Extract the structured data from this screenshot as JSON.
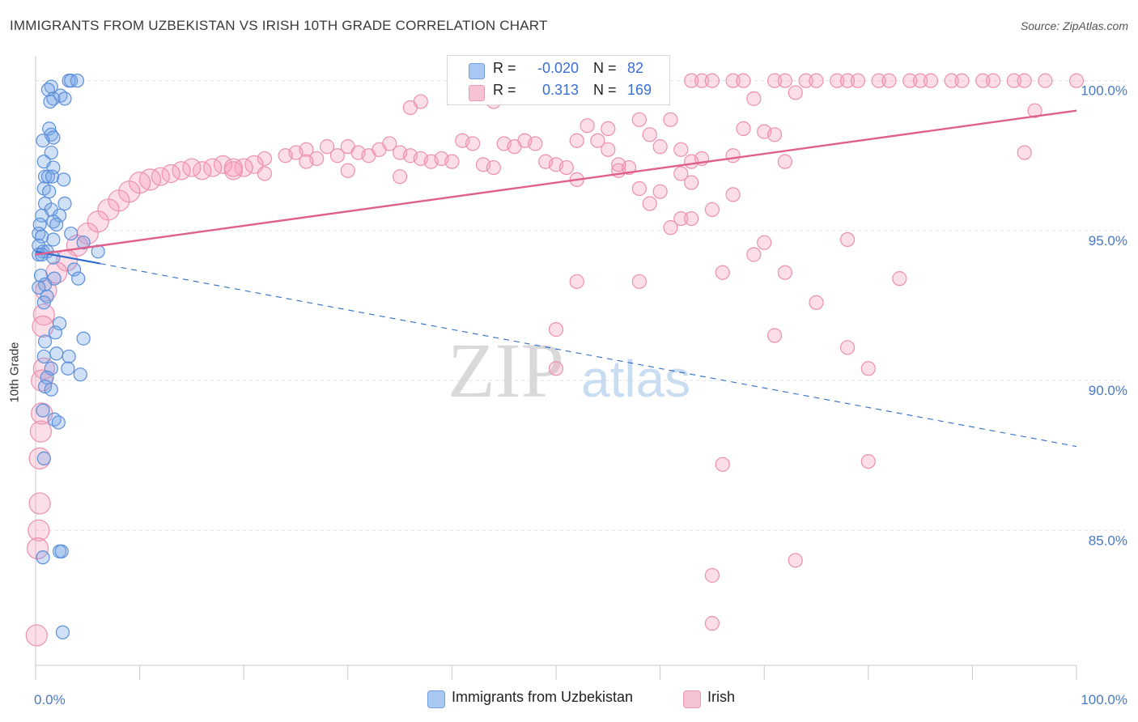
{
  "title": "IMMIGRANTS FROM UZBEKISTAN VS IRISH 10TH GRADE CORRELATION CHART",
  "source": "Source: ZipAtlas.com",
  "watermark": {
    "zip": "ZIP",
    "atlas": "atlas"
  },
  "legend": {
    "r_label": "R =",
    "n_label": "N =",
    "rows": [
      {
        "name": "Immigrants from Uzbekistan",
        "r": "-0.020",
        "n": "82",
        "color": "#a9c8f2"
      },
      {
        "name": "Irish",
        "r": "0.313",
        "n": "169",
        "color": "#f5b5c8"
      }
    ]
  },
  "chart_data": {
    "type": "scatter",
    "title": "IMMIGRANTS FROM UZBEKISTAN VS IRISH 10TH GRADE CORRELATION CHART",
    "xlabel": "",
    "ylabel": "10th Grade",
    "xlim": [
      0,
      100
    ],
    "ylim": [
      80.5,
      100.8
    ],
    "x_tick_labels": [
      {
        "value": 0,
        "label": "0.0%"
      },
      {
        "value": 100,
        "label": "100.0%"
      }
    ],
    "y_ticks": [
      {
        "value": 85,
        "label": "85.0%"
      },
      {
        "value": 90,
        "label": "90.0%"
      },
      {
        "value": 95,
        "label": "95.0%"
      },
      {
        "value": 100,
        "label": "100.0%"
      }
    ],
    "colors": {
      "uzbekistan_fill": "rgba(120,165,230,0.35)",
      "uzbekistan_stroke": "#5b8fdb",
      "irish_fill": "rgba(245,160,190,0.35)",
      "irish_stroke": "#ec8fb0",
      "uzbekistan_line": "#2f6cc9",
      "irish_line": "#e0608c"
    },
    "series": [
      {
        "name": "Immigrants from Uzbekistan",
        "r": -0.02,
        "n": 82,
        "trend": {
          "x0": 0,
          "y0": 94.3,
          "x1": 6.2,
          "y1": 93.9,
          "dash_x1": 100,
          "dash_y1": 87.8
        },
        "points": [
          [
            3.2,
            100
          ],
          [
            3.4,
            100
          ],
          [
            4.0,
            100
          ],
          [
            1.5,
            99.8
          ],
          [
            1.2,
            99.7
          ],
          [
            2.4,
            99.5
          ],
          [
            1.7,
            99.4
          ],
          [
            1.4,
            99.3
          ],
          [
            2.8,
            99.4
          ],
          [
            1.3,
            98.4
          ],
          [
            1.5,
            98.2
          ],
          [
            1.7,
            98.1
          ],
          [
            0.7,
            98.0
          ],
          [
            1.5,
            97.6
          ],
          [
            0.8,
            97.3
          ],
          [
            1.7,
            97.1
          ],
          [
            0.9,
            96.8
          ],
          [
            1.2,
            96.8
          ],
          [
            1.6,
            96.8
          ],
          [
            2.7,
            96.7
          ],
          [
            0.8,
            96.4
          ],
          [
            1.3,
            96.3
          ],
          [
            0.9,
            95.9
          ],
          [
            2.8,
            95.9
          ],
          [
            1.5,
            95.7
          ],
          [
            0.6,
            95.5
          ],
          [
            2.3,
            95.5
          ],
          [
            1.7,
            95.3
          ],
          [
            2.0,
            95.2
          ],
          [
            0.4,
            95.2
          ],
          [
            0.3,
            94.9
          ],
          [
            0.6,
            94.8
          ],
          [
            3.4,
            94.9
          ],
          [
            1.7,
            94.7
          ],
          [
            4.6,
            94.6
          ],
          [
            0.3,
            94.5
          ],
          [
            0.7,
            94.3
          ],
          [
            1.1,
            94.3
          ],
          [
            0.3,
            94.2
          ],
          [
            0.6,
            94.2
          ],
          [
            6.0,
            94.3
          ],
          [
            1.7,
            94.1
          ],
          [
            3.7,
            93.7
          ],
          [
            0.5,
            93.5
          ],
          [
            1.8,
            93.4
          ],
          [
            4.1,
            93.4
          ],
          [
            0.9,
            93.2
          ],
          [
            0.3,
            93.1
          ],
          [
            1.1,
            92.8
          ],
          [
            0.8,
            92.6
          ],
          [
            2.3,
            91.9
          ],
          [
            1.9,
            91.6
          ],
          [
            4.6,
            91.4
          ],
          [
            0.9,
            91.3
          ],
          [
            2.0,
            90.9
          ],
          [
            0.8,
            90.8
          ],
          [
            3.2,
            90.8
          ],
          [
            1.5,
            90.4
          ],
          [
            3.1,
            90.4
          ],
          [
            1.1,
            90.1
          ],
          [
            4.3,
            90.2
          ],
          [
            0.9,
            89.8
          ],
          [
            1.5,
            89.7
          ],
          [
            0.7,
            89.0
          ],
          [
            1.8,
            88.7
          ],
          [
            2.2,
            88.6
          ],
          [
            0.8,
            87.4
          ],
          [
            2.3,
            84.3
          ],
          [
            2.5,
            84.3
          ],
          [
            0.7,
            84.1
          ],
          [
            2.6,
            81.6
          ]
        ]
      },
      {
        "name": "Irish",
        "r": 0.313,
        "n": 169,
        "trend": {
          "x0": 0,
          "y0": 94.2,
          "x1": 100,
          "y1": 99.0
        },
        "points": [
          [
            63,
            100
          ],
          [
            64,
            100
          ],
          [
            65,
            100
          ],
          [
            67,
            100
          ],
          [
            68,
            100
          ],
          [
            71,
            100
          ],
          [
            72,
            100
          ],
          [
            74,
            100
          ],
          [
            75,
            100
          ],
          [
            77,
            100
          ],
          [
            78,
            100
          ],
          [
            79,
            100
          ],
          [
            81,
            100
          ],
          [
            82,
            100
          ],
          [
            84,
            100
          ],
          [
            85,
            100
          ],
          [
            86,
            100
          ],
          [
            88,
            100
          ],
          [
            89,
            100
          ],
          [
            91,
            100
          ],
          [
            92,
            100
          ],
          [
            94,
            100
          ],
          [
            95,
            100
          ],
          [
            97,
            100
          ],
          [
            100,
            100
          ],
          [
            73,
            99.6
          ],
          [
            69,
            99.4
          ],
          [
            44,
            99.3
          ],
          [
            37,
            99.3
          ],
          [
            36,
            99.1
          ],
          [
            96,
            99.0
          ],
          [
            58,
            98.7
          ],
          [
            61,
            98.7
          ],
          [
            53,
            98.5
          ],
          [
            55,
            98.4
          ],
          [
            68,
            98.4
          ],
          [
            70,
            98.3
          ],
          [
            71,
            98.2
          ],
          [
            59,
            98.2
          ],
          [
            54,
            98.0
          ],
          [
            47,
            98.0
          ],
          [
            48,
            97.9
          ],
          [
            45,
            97.9
          ],
          [
            34,
            97.9
          ],
          [
            30,
            97.8
          ],
          [
            41,
            98.0
          ],
          [
            42,
            97.9
          ],
          [
            46,
            97.8
          ],
          [
            52,
            98.0
          ],
          [
            60,
            97.8
          ],
          [
            55,
            97.7
          ],
          [
            62,
            97.7
          ],
          [
            67,
            97.5
          ],
          [
            64,
            97.4
          ],
          [
            63,
            97.3
          ],
          [
            28,
            97.8
          ],
          [
            26,
            97.7
          ],
          [
            25,
            97.6
          ],
          [
            24,
            97.5
          ],
          [
            22,
            97.4
          ],
          [
            27,
            97.4
          ],
          [
            29,
            97.5
          ],
          [
            31,
            97.6
          ],
          [
            32,
            97.5
          ],
          [
            33,
            97.7
          ],
          [
            35,
            97.6
          ],
          [
            36,
            97.5
          ],
          [
            37,
            97.4
          ],
          [
            38,
            97.3
          ],
          [
            39,
            97.4
          ],
          [
            40,
            97.3
          ],
          [
            43,
            97.2
          ],
          [
            44,
            97.1
          ],
          [
            49,
            97.3
          ],
          [
            50,
            97.2
          ],
          [
            51,
            97.1
          ],
          [
            56,
            97.0
          ],
          [
            57,
            97.1
          ],
          [
            21,
            97.2
          ],
          [
            20,
            97.1
          ],
          [
            19,
            97.0
          ],
          [
            18,
            97.2
          ],
          [
            17,
            97.1
          ],
          [
            16,
            97.0
          ],
          [
            15,
            97.1
          ],
          [
            14,
            97.0
          ],
          [
            13,
            96.9
          ],
          [
            12,
            96.8
          ],
          [
            11,
            96.7
          ],
          [
            10,
            96.6
          ],
          [
            9,
            96.3
          ],
          [
            8,
            96.0
          ],
          [
            7,
            95.7
          ],
          [
            6,
            95.3
          ],
          [
            5,
            94.9
          ],
          [
            4,
            94.5
          ],
          [
            3,
            94.0
          ],
          [
            2,
            93.6
          ],
          [
            1,
            93.0
          ],
          [
            0.8,
            92.2
          ],
          [
            0.7,
            91.8
          ],
          [
            0.8,
            90.4
          ],
          [
            0.6,
            90.0
          ],
          [
            0.6,
            88.9
          ],
          [
            0.5,
            88.3
          ],
          [
            0.4,
            87.4
          ],
          [
            0.4,
            85.9
          ],
          [
            0.3,
            85.0
          ],
          [
            0.2,
            84.4
          ],
          [
            0.1,
            81.5
          ],
          [
            22,
            96.9
          ],
          [
            19,
            97.1
          ],
          [
            26,
            97.3
          ],
          [
            30,
            97.0
          ],
          [
            35,
            96.8
          ],
          [
            63,
            96.6
          ],
          [
            58,
            96.4
          ],
          [
            60,
            96.3
          ],
          [
            59,
            95.9
          ],
          [
            65,
            95.7
          ],
          [
            62,
            95.4
          ],
          [
            61,
            95.1
          ],
          [
            70,
            94.6
          ],
          [
            69,
            94.2
          ],
          [
            78,
            94.7
          ],
          [
            72,
            93.6
          ],
          [
            66,
            93.6
          ],
          [
            58,
            93.3
          ],
          [
            52,
            93.3
          ],
          [
            83,
            93.4
          ],
          [
            75,
            92.6
          ],
          [
            50,
            91.7
          ],
          [
            71,
            91.5
          ],
          [
            78,
            91.1
          ],
          [
            50,
            90.4
          ],
          [
            80,
            90.4
          ],
          [
            66,
            87.2
          ],
          [
            80,
            87.3
          ],
          [
            73,
            84.0
          ],
          [
            65,
            83.5
          ],
          [
            65,
            81.9
          ],
          [
            95,
            97.6
          ],
          [
            72,
            97.3
          ],
          [
            67,
            96.2
          ],
          [
            63,
            95.4
          ],
          [
            52,
            96.7
          ],
          [
            56,
            97.2
          ],
          [
            62,
            96.9
          ]
        ]
      }
    ]
  },
  "bottom_legend": [
    "Immigrants from Uzbekistan",
    "Irish"
  ]
}
